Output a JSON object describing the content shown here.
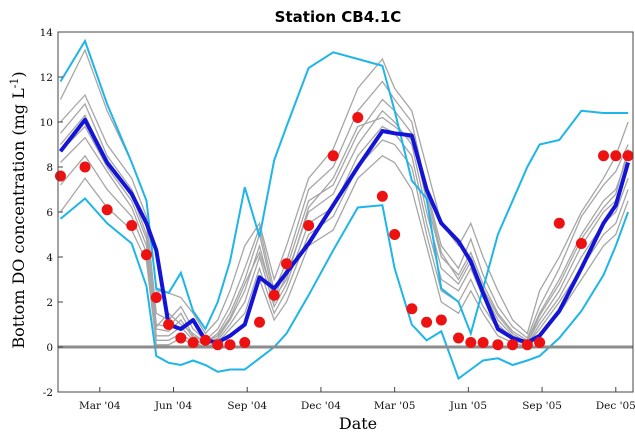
{
  "chart_data": {
    "type": "line",
    "title": "Station CB4.1C",
    "xlabel": "Date",
    "ylabel_parts": [
      "Bottom DO concentration (mg L",
      "-1",
      ")"
    ],
    "x_start": "2004-01",
    "x_end": "2005-12",
    "x_ticks": [
      {
        "x": 1.7,
        "label": "Mar '04"
      },
      {
        "x": 4.7,
        "label": "Jun '04"
      },
      {
        "x": 7.7,
        "label": "Sep '04"
      },
      {
        "x": 10.7,
        "label": "Dec '04"
      },
      {
        "x": 13.7,
        "label": "Mar '05"
      },
      {
        "x": 16.7,
        "label": "Jun '05"
      },
      {
        "x": 19.7,
        "label": "Sep '05"
      },
      {
        "x": 22.7,
        "label": "Dec '05"
      }
    ],
    "ylim": [
      -2,
      14
    ],
    "y_ticks": [
      -2,
      0,
      2,
      4,
      6,
      8,
      10,
      12,
      14
    ],
    "zero_line": 0,
    "colors": {
      "ensemble": "#a6a6a6",
      "bounds": "#1fb5e8",
      "mean": "#1414d6",
      "observed": "#ee1111",
      "zero_line": "#8c8c8c"
    },
    "series": [
      {
        "role": "ensemble",
        "x": [
          0.1,
          1.1,
          2.0,
          3.0,
          3.6,
          4.0,
          4.5,
          5.0,
          5.5,
          6.0,
          6.5,
          7.0,
          7.6,
          8.2,
          8.8,
          9.3,
          10.2,
          11.2,
          12.2,
          13.2,
          13.7,
          14.4,
          15.0,
          15.6,
          16.3,
          16.8,
          17.3,
          17.9,
          18.5,
          19.1,
          19.6,
          20.4,
          21.3,
          22.2,
          22.7,
          23.2
        ],
        "y": [
          11.0,
          13.2,
          10.5,
          8.2,
          6.5,
          2.5,
          2.4,
          2.2,
          1.5,
          0.6,
          1.2,
          2.5,
          4.5,
          5.5,
          3.0,
          4.5,
          7.5,
          8.8,
          11.5,
          12.8,
          11.5,
          10.5,
          8.0,
          5.5,
          4.5,
          5.5,
          4.0,
          2.5,
          1.2,
          0.6,
          2.5,
          4.0,
          6.0,
          7.5,
          8.5,
          10.0
        ]
      },
      {
        "role": "ensemble",
        "x": [
          0.1,
          1.1,
          2.0,
          3.0,
          3.6,
          4.0,
          4.5,
          5.0,
          5.5,
          6.0,
          6.5,
          7.0,
          7.6,
          8.2,
          8.8,
          9.3,
          10.2,
          11.2,
          12.2,
          13.2,
          13.7,
          14.4,
          15.0,
          15.6,
          16.3,
          16.8,
          17.3,
          17.9,
          18.5,
          19.1,
          19.6,
          20.4,
          21.3,
          22.2,
          22.7,
          23.2
        ],
        "y": [
          10.0,
          11.2,
          9.0,
          7.5,
          5.8,
          1.5,
          1.2,
          1.8,
          0.8,
          0.3,
          0.8,
          1.8,
          3.5,
          5.3,
          2.5,
          3.8,
          7.0,
          8.0,
          10.5,
          11.8,
          11.0,
          10.0,
          7.0,
          4.5,
          3.5,
          4.8,
          3.2,
          1.8,
          0.9,
          0.4,
          1.8,
          3.5,
          5.8,
          7.2,
          7.8,
          9.0
        ]
      },
      {
        "role": "ensemble",
        "x": [
          0.1,
          1.1,
          2.0,
          3.0,
          3.6,
          4.0,
          4.5,
          5.0,
          5.5,
          6.0,
          6.5,
          7.0,
          7.6,
          8.2,
          8.8,
          9.3,
          10.2,
          11.2,
          12.2,
          13.2,
          13.7,
          14.4,
          15.0,
          15.6,
          16.3,
          16.8,
          17.3,
          17.9,
          18.5,
          19.1,
          19.6,
          20.4,
          21.3,
          22.2,
          22.7,
          23.2
        ],
        "y": [
          9.5,
          10.8,
          8.5,
          7.0,
          5.5,
          1.0,
          0.9,
          1.5,
          0.5,
          0.2,
          0.6,
          1.5,
          3.0,
          5.0,
          2.2,
          3.5,
          6.5,
          7.2,
          9.5,
          11.0,
          10.5,
          9.5,
          6.5,
          4.0,
          3.2,
          4.2,
          2.8,
          1.5,
          0.7,
          0.3,
          1.5,
          3.0,
          5.0,
          6.5,
          7.0,
          8.5
        ]
      },
      {
        "role": "ensemble",
        "x": [
          0.1,
          1.1,
          2.0,
          3.0,
          3.6,
          4.0,
          4.5,
          5.0,
          5.5,
          6.0,
          6.5,
          7.0,
          7.6,
          8.2,
          8.8,
          9.3,
          10.2,
          11.2,
          12.2,
          13.2,
          13.7,
          14.4,
          15.0,
          15.6,
          16.3,
          16.8,
          17.3,
          17.9,
          18.5,
          19.1,
          19.6,
          20.4,
          21.3,
          22.2,
          22.7,
          23.2
        ],
        "y": [
          9.0,
          10.3,
          8.2,
          6.8,
          5.0,
          0.8,
          0.7,
          1.2,
          0.4,
          0.1,
          0.4,
          1.2,
          2.5,
          4.5,
          2.0,
          3.2,
          6.0,
          6.8,
          9.0,
          10.5,
          10.0,
          9.0,
          6.0,
          3.5,
          2.8,
          3.8,
          2.5,
          1.2,
          0.5,
          0.2,
          1.2,
          2.5,
          4.5,
          6.0,
          6.5,
          8.0
        ]
      },
      {
        "role": "ensemble",
        "x": [
          0.1,
          1.1,
          2.0,
          3.0,
          3.6,
          4.0,
          4.5,
          5.0,
          5.5,
          6.0,
          6.5,
          7.0,
          7.6,
          8.2,
          8.8,
          9.3,
          10.2,
          11.2,
          12.2,
          13.2,
          13.7,
          14.4,
          15.0,
          15.6,
          16.3,
          16.8,
          17.3,
          17.9,
          18.5,
          19.1,
          19.6,
          20.4,
          21.3,
          22.2,
          22.7,
          23.2
        ],
        "y": [
          8.2,
          9.3,
          7.8,
          6.2,
          4.5,
          0.5,
          0.5,
          0.9,
          0.3,
          0.1,
          0.3,
          1.0,
          2.0,
          4.0,
          1.8,
          2.8,
          5.5,
          6.2,
          8.5,
          9.8,
          9.5,
          8.5,
          5.5,
          3.0,
          2.5,
          3.5,
          2.2,
          1.0,
          0.4,
          0.1,
          1.0,
          2.2,
          4.0,
          5.5,
          6.0,
          7.5
        ]
      },
      {
        "role": "ensemble",
        "x": [
          0.1,
          1.1,
          2.0,
          3.0,
          3.6,
          4.0,
          4.5,
          5.0,
          5.5,
          6.0,
          6.5,
          7.0,
          7.6,
          8.2,
          8.8,
          9.3,
          10.2,
          11.2,
          12.2,
          13.2,
          13.7,
          14.4,
          15.0,
          15.6,
          16.3,
          16.8,
          17.3,
          17.9,
          18.5,
          19.1,
          19.6,
          20.4,
          21.3,
          22.2,
          22.7,
          23.2
        ],
        "y": [
          7.2,
          8.5,
          7.0,
          5.8,
          4.2,
          0.3,
          0.3,
          0.6,
          0.2,
          0.0,
          0.2,
          0.8,
          1.5,
          3.5,
          1.5,
          2.5,
          5.0,
          5.8,
          8.0,
          9.2,
          9.0,
          8.0,
          5.0,
          2.5,
          2.0,
          3.0,
          1.8,
          0.8,
          0.3,
          0.1,
          0.8,
          2.0,
          3.5,
          5.0,
          5.5,
          7.0
        ]
      },
      {
        "role": "ensemble",
        "x": [
          0.1,
          1.1,
          2.0,
          3.0,
          3.6,
          4.0,
          4.5,
          5.0,
          5.5,
          6.0,
          6.5,
          7.0,
          7.6,
          8.2,
          8.8,
          9.3,
          10.2,
          11.2,
          12.2,
          13.2,
          13.7,
          14.4,
          15.0,
          15.6,
          16.3,
          16.8,
          17.3,
          17.9,
          18.5,
          19.1,
          19.6,
          20.4,
          21.3,
          22.2,
          22.7,
          23.2
        ],
        "y": [
          6.0,
          7.5,
          6.2,
          5.2,
          3.8,
          0.1,
          0.1,
          0.4,
          0.1,
          0.0,
          0.1,
          0.5,
          1.0,
          3.0,
          1.2,
          2.0,
          4.5,
          5.2,
          7.5,
          8.5,
          8.2,
          7.0,
          4.5,
          2.0,
          1.5,
          2.5,
          1.5,
          0.5,
          0.2,
          0.0,
          0.5,
          1.5,
          3.0,
          4.5,
          5.0,
          6.5
        ]
      },
      {
        "role": "ensemble",
        "x": [
          0.1,
          1.1,
          2.0,
          3.0,
          3.6,
          4.0,
          4.5,
          5.0,
          5.5,
          6.0,
          6.5,
          7.0,
          7.6,
          8.2,
          8.8,
          9.3,
          10.2,
          11.2,
          12.2,
          13.2,
          13.7,
          14.4,
          15.0,
          15.6,
          16.3,
          16.8,
          17.3,
          17.9,
          18.5,
          19.1,
          19.6,
          20.4,
          21.3,
          22.2,
          22.7,
          23.2
        ],
        "y": [
          8.7,
          9.8,
          8.0,
          6.5,
          4.8,
          0.9,
          1.5,
          1.0,
          0.6,
          0.2,
          0.5,
          1.3,
          2.8,
          4.2,
          2.2,
          3.0,
          6.2,
          7.5,
          9.8,
          10.2,
          9.8,
          9.2,
          6.8,
          4.2,
          3.0,
          4.0,
          2.6,
          1.4,
          0.6,
          0.2,
          1.4,
          2.8,
          4.8,
          6.2,
          6.8,
          8.8
        ]
      },
      {
        "role": "bounds",
        "x": [
          0.1,
          1.1,
          2.0,
          3.0,
          3.6,
          4.0,
          4.5,
          5.0,
          5.5,
          6.0,
          6.5,
          7.0,
          7.6,
          8.2,
          8.8,
          9.3,
          10.2,
          11.2,
          12.2,
          13.2,
          13.7,
          14.4,
          15.0,
          15.6,
          16.3,
          16.8,
          17.3,
          17.9,
          18.5,
          19.1,
          19.6,
          20.4,
          21.3,
          22.2,
          22.7,
          23.2
        ],
        "y": [
          11.8,
          13.6,
          10.8,
          8.2,
          6.5,
          2.6,
          2.4,
          3.3,
          1.6,
          0.8,
          2.0,
          3.8,
          7.1,
          4.9,
          8.3,
          9.8,
          12.4,
          13.1,
          12.8,
          12.5,
          10.5,
          7.4,
          6.6,
          2.6,
          2.0,
          0.6,
          2.6,
          5.0,
          6.5,
          8.0,
          9.0,
          9.2,
          10.5,
          10.4,
          10.4,
          10.4
        ]
      },
      {
        "role": "bounds",
        "x": [
          0.1,
          1.1,
          2.0,
          3.0,
          3.6,
          4.0,
          4.5,
          5.0,
          5.5,
          6.0,
          6.5,
          7.0,
          7.6,
          8.2,
          8.8,
          9.3,
          10.2,
          11.2,
          12.2,
          13.2,
          13.7,
          14.4,
          15.0,
          15.6,
          16.3,
          16.8,
          17.3,
          17.9,
          18.5,
          19.1,
          19.6,
          20.4,
          21.3,
          22.2,
          22.7,
          23.2
        ],
        "y": [
          5.7,
          6.6,
          5.5,
          4.6,
          2.7,
          -0.4,
          -0.7,
          -0.8,
          -0.6,
          -0.8,
          -1.1,
          -1.0,
          -1.0,
          -0.5,
          0.0,
          0.6,
          2.3,
          4.3,
          6.2,
          6.3,
          3.5,
          1.0,
          0.3,
          0.7,
          -1.4,
          -1.0,
          -0.6,
          -0.5,
          -0.8,
          -0.6,
          -0.4,
          0.4,
          1.6,
          3.2,
          4.5,
          6.0
        ]
      },
      {
        "role": "mean",
        "x": [
          0.1,
          1.1,
          2.0,
          3.0,
          3.6,
          4.0,
          4.5,
          5.0,
          5.5,
          6.0,
          6.5,
          7.0,
          7.6,
          8.2,
          8.8,
          9.3,
          10.2,
          11.2,
          12.2,
          13.2,
          13.7,
          14.4,
          15.0,
          15.6,
          16.3,
          16.8,
          17.3,
          17.9,
          18.5,
          19.1,
          19.6,
          20.4,
          21.3,
          22.2,
          22.7,
          23.2
        ],
        "y": [
          8.7,
          10.1,
          8.2,
          6.8,
          5.5,
          4.3,
          1.0,
          0.8,
          1.2,
          0.3,
          0.2,
          0.5,
          1.0,
          3.1,
          2.6,
          3.3,
          4.6,
          6.3,
          8.0,
          9.6,
          9.5,
          9.4,
          7.0,
          5.5,
          4.7,
          3.8,
          2.4,
          0.8,
          0.4,
          0.2,
          0.5,
          1.6,
          3.5,
          5.5,
          6.3,
          8.2
        ]
      },
      {
        "role": "observed",
        "x": [
          0.1,
          1.1,
          2.0,
          3.0,
          3.6,
          4.0,
          4.5,
          5.0,
          5.5,
          6.0,
          6.5,
          7.0,
          7.6,
          8.2,
          8.8,
          9.3,
          10.2,
          11.2,
          12.2,
          13.2,
          13.7,
          14.4,
          15.0,
          15.6,
          16.3,
          16.8,
          17.3,
          17.9,
          18.5,
          19.1,
          19.6,
          20.4,
          21.3,
          22.2,
          22.7,
          23.2
        ],
        "y": [
          7.6,
          8.0,
          6.1,
          5.4,
          4.1,
          2.2,
          1.0,
          0.4,
          0.2,
          0.3,
          0.1,
          0.1,
          0.2,
          1.1,
          2.3,
          3.7,
          5.4,
          8.5,
          10.2,
          6.7,
          5.0,
          1.7,
          1.1,
          1.2,
          0.4,
          0.2,
          0.2,
          0.1,
          0.1,
          0.1,
          0.2,
          5.5,
          4.6,
          8.5,
          8.5,
          8.5
        ]
      }
    ]
  }
}
